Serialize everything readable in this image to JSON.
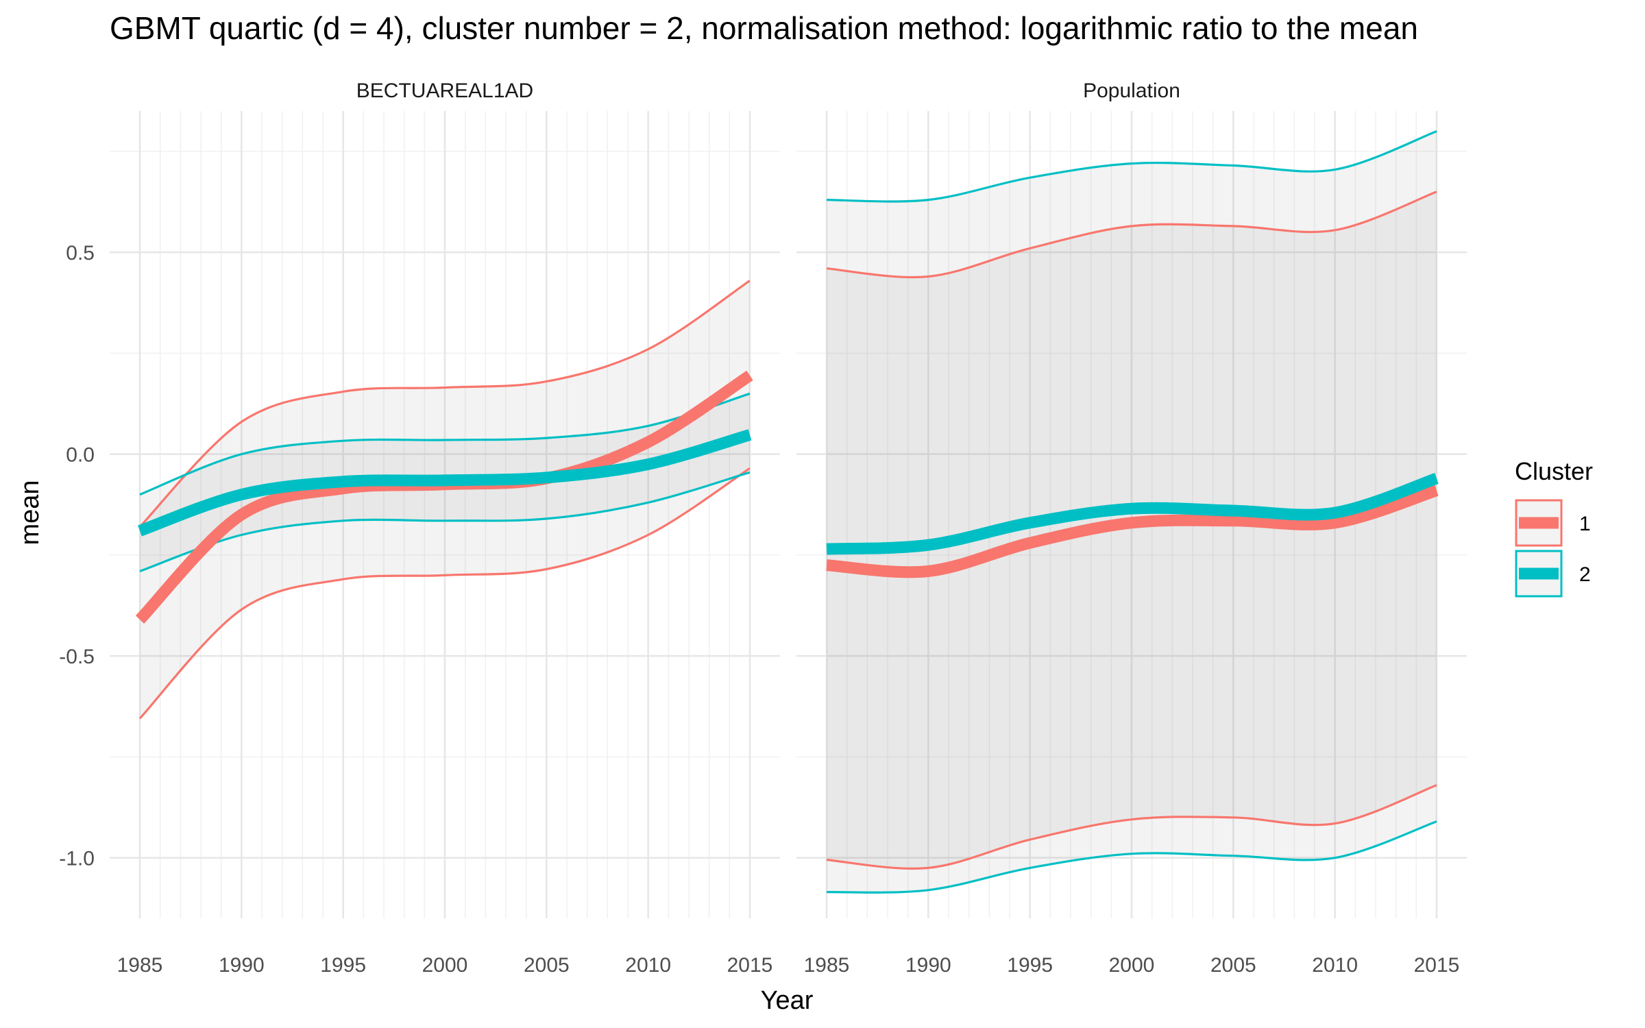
{
  "chart_data": {
    "type": "line",
    "title": "GBMT quartic (d = 4), cluster number = 2, normalisation method: logarithmic ratio to the mean",
    "xlabel": "Year",
    "ylabel": "mean",
    "xlim": [
      1985,
      2015
    ],
    "ylim": [
      -1.15,
      0.85
    ],
    "x_ticks": [
      "1985",
      "1990",
      "1995",
      "2000",
      "2005",
      "2010",
      "2015"
    ],
    "y_ticks": [
      "0.5",
      "0.0",
      "-0.5",
      "-1.0"
    ],
    "y_tick_values": [
      0.5,
      0.0,
      -0.5,
      -1.0
    ],
    "grid": true,
    "legend": {
      "title": "Cluster",
      "position": "right",
      "entries": [
        {
          "label": "1",
          "color": "#F8766D"
        },
        {
          "label": "2",
          "color": "#00BFC4"
        }
      ]
    },
    "x": [
      1985,
      1990,
      1995,
      2000,
      2005,
      2010,
      2015
    ],
    "panels": [
      {
        "strip": "BECTUAREAL1AD",
        "series": [
          {
            "name": "1",
            "color": "#F8766D",
            "mean": [
              -0.41,
              -0.15,
              -0.085,
              -0.075,
              -0.06,
              0.03,
              0.195
            ],
            "upper": [
              -0.18,
              0.08,
              0.155,
              0.165,
              0.18,
              0.26,
              0.43
            ],
            "lower": [
              -0.655,
              -0.385,
              -0.31,
              -0.3,
              -0.285,
              -0.2,
              -0.035
            ]
          },
          {
            "name": "2",
            "color": "#00BFC4",
            "mean": [
              -0.19,
              -0.1,
              -0.068,
              -0.065,
              -0.058,
              -0.025,
              0.048
            ],
            "upper": [
              -0.1,
              0.0,
              0.033,
              0.035,
              0.04,
              0.07,
              0.15
            ],
            "lower": [
              -0.29,
              -0.2,
              -0.165,
              -0.165,
              -0.16,
              -0.12,
              -0.045
            ]
          }
        ]
      },
      {
        "strip": "Population",
        "series": [
          {
            "name": "1",
            "color": "#F8766D",
            "mean": [
              -0.275,
              -0.29,
              -0.22,
              -0.17,
              -0.165,
              -0.17,
              -0.09
            ],
            "upper": [
              0.46,
              0.44,
              0.51,
              0.565,
              0.565,
              0.555,
              0.65
            ],
            "lower": [
              -1.005,
              -1.025,
              -0.955,
              -0.905,
              -0.9,
              -0.915,
              -0.82
            ]
          },
          {
            "name": "2",
            "color": "#00BFC4",
            "mean": [
              -0.235,
              -0.225,
              -0.17,
              -0.135,
              -0.14,
              -0.145,
              -0.06
            ],
            "upper": [
              0.63,
              0.63,
              0.685,
              0.72,
              0.715,
              0.705,
              0.8
            ],
            "lower": [
              -1.085,
              -1.08,
              -1.025,
              -0.99,
              -0.995,
              -1.0,
              -0.91
            ]
          }
        ]
      }
    ]
  }
}
